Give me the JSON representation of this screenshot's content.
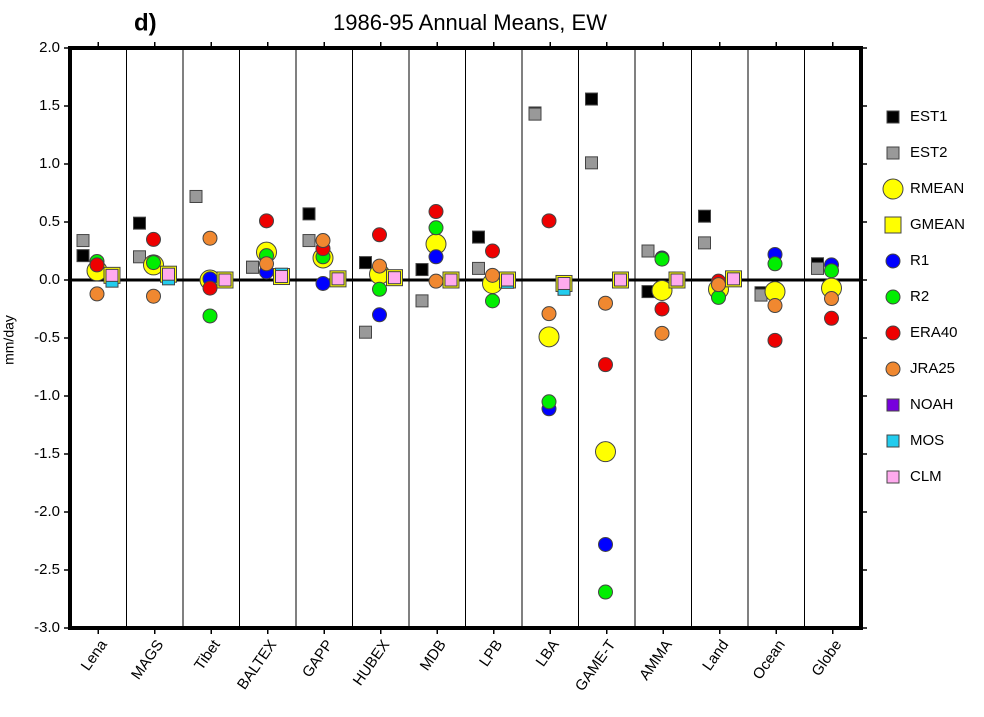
{
  "chart_data": {
    "type": "scatter",
    "panel_label": "d)",
    "title": "1986-95 Annual Means, EW",
    "y_label": "mm/day",
    "categories": [
      "Lena",
      "MAGS",
      "Tibet",
      "BALTEX",
      "GAPP",
      "HUBEX",
      "MDB",
      "LPB",
      "LBA",
      "GAME-T",
      "AMMA",
      "Land",
      "Ocean",
      "Globe"
    ],
    "ylim": [
      -3.0,
      2.0
    ],
    "yticks": [
      {
        "value": -3.0,
        "label": "-3.0"
      },
      {
        "value": -2.5,
        "label": "-2.5"
      },
      {
        "value": -2.0,
        "label": "-2.0"
      },
      {
        "value": -1.5,
        "label": "-1.5"
      },
      {
        "value": -1.0,
        "label": "-1.0"
      },
      {
        "value": -0.5,
        "label": "-0.5"
      },
      {
        "value": 0.0,
        "label": "0.0"
      },
      {
        "value": 0.5,
        "label": "0.5"
      },
      {
        "value": 1.0,
        "label": "1.0"
      },
      {
        "value": 1.5,
        "label": "1.5"
      },
      {
        "value": 2.0,
        "label": "2.0"
      }
    ],
    "zero_line": true,
    "legend": "right",
    "series": [
      {
        "name": "EST1",
        "color": "#000000",
        "marker": "square",
        "values": [
          0.21,
          0.49,
          0.72,
          0.11,
          0.57,
          0.15,
          0.09,
          0.37,
          1.44,
          1.56,
          -0.1,
          0.55,
          -0.11,
          0.14
        ]
      },
      {
        "name": "EST2",
        "color": "#999999",
        "marker": "square",
        "values": [
          0.34,
          0.2,
          0.72,
          0.11,
          0.34,
          -0.45,
          -0.18,
          0.1,
          1.43,
          1.01,
          0.25,
          0.32,
          -0.13,
          0.1
        ]
      },
      {
        "name": "RMEAN",
        "color": "#ffff00",
        "marker": "circle",
        "values": [
          0.08,
          0.13,
          0.0,
          0.24,
          0.19,
          0.05,
          0.31,
          -0.03,
          -0.49,
          -1.48,
          -0.09,
          -0.08,
          -0.1,
          -0.07
        ]
      },
      {
        "name": "GMEAN",
        "color": "#ffff00",
        "marker": "square",
        "values": [
          0.04,
          0.05,
          0.0,
          0.03,
          0.01,
          0.02,
          0.0,
          0.0,
          -0.03,
          0.0,
          0.0,
          0.01,
          null,
          null
        ]
      },
      {
        "name": "R1",
        "color": "#0000ff",
        "marker": "circle",
        "values": [
          null,
          null,
          0.01,
          0.07,
          -0.03,
          -0.3,
          0.2,
          null,
          -1.11,
          -2.28,
          0.19,
          null,
          0.22,
          0.13
        ]
      },
      {
        "name": "R2",
        "color": "#00ee00",
        "marker": "circle",
        "values": [
          0.16,
          0.15,
          -0.31,
          0.21,
          0.2,
          -0.08,
          0.45,
          -0.18,
          -1.05,
          -2.69,
          0.18,
          -0.15,
          0.14,
          0.08
        ]
      },
      {
        "name": "ERA40",
        "color": "#ee0000",
        "marker": "circle",
        "values": [
          0.13,
          0.35,
          -0.07,
          0.51,
          0.27,
          0.39,
          0.59,
          0.25,
          0.51,
          -0.73,
          -0.25,
          -0.01,
          -0.52,
          -0.33
        ]
      },
      {
        "name": "JRA25",
        "color": "#f08830",
        "marker": "circle",
        "values": [
          -0.12,
          -0.14,
          0.36,
          0.14,
          0.34,
          0.12,
          -0.01,
          0.04,
          -0.29,
          -0.2,
          -0.46,
          -0.04,
          -0.22,
          -0.16
        ]
      },
      {
        "name": "NOAH",
        "color": "#7700dd",
        "marker": "square",
        "values": [
          null,
          null,
          null,
          null,
          null,
          null,
          null,
          null,
          null,
          null,
          null,
          null,
          null,
          null
        ]
      },
      {
        "name": "MOS",
        "color": "#22ccee",
        "marker": "square",
        "values": [
          -0.01,
          0.01,
          null,
          0.05,
          null,
          null,
          null,
          -0.02,
          -0.08,
          null,
          null,
          null,
          null,
          null
        ]
      },
      {
        "name": "CLM",
        "color": "#ffaaee",
        "marker": "square",
        "values": [
          0.04,
          0.05,
          0.0,
          0.03,
          0.01,
          0.02,
          0.0,
          0.0,
          -0.03,
          0.0,
          0.0,
          0.01,
          null,
          null
        ]
      }
    ]
  }
}
